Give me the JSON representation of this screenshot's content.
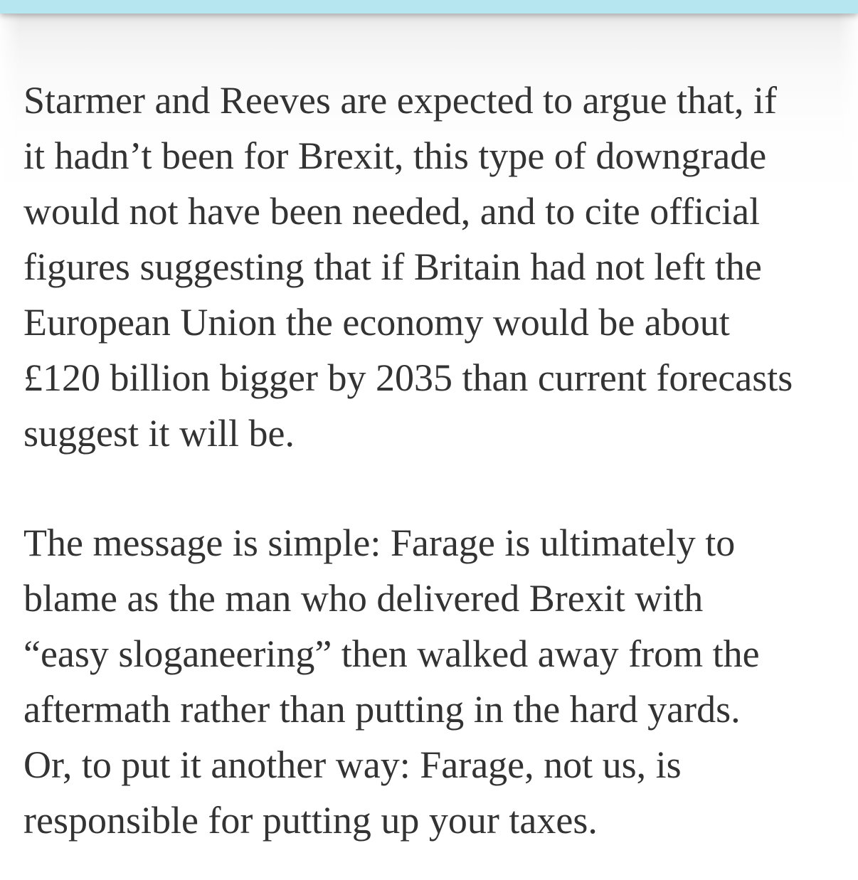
{
  "page": {
    "accent_bar_color": "#b6e6f0",
    "text_color": "#333333",
    "background_color": "#ffffff"
  },
  "article": {
    "paragraphs": [
      {
        "lines": [
          "Starmer and Reeves are expected to argue that, if",
          "it hadn’t been for Brexit, this type of downgrade",
          "would not have been needed, and to cite official",
          "figures suggesting that if Britain had not left the",
          "European Union the economy would be about",
          "£120 billion bigger by 2035 than current forecasts",
          "suggest it will be."
        ]
      },
      {
        "lines": [
          "The message is simple: Farage is ultimately to",
          "blame as the man who delivered Brexit with",
          "“easy sloganeering” then walked away from the",
          "aftermath rather than putting in the hard yards.",
          "Or, to put it another way: Farage, not us, is",
          "responsible for putting up your taxes."
        ]
      }
    ]
  }
}
